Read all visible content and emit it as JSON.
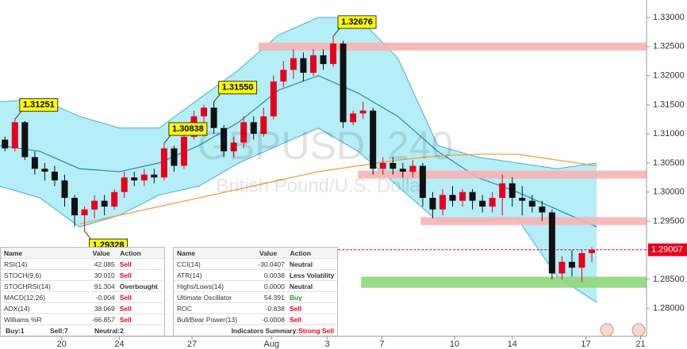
{
  "chart_data": {
    "type": "candlestick",
    "watermark_title": "GBPUSD, 240",
    "watermark_subtitle": "British Pound/U.S. Dollar",
    "xlim": [
      0,
      65
    ],
    "ylim": [
      1.2752,
      1.333
    ],
    "xticks": [
      {
        "value": 6.2,
        "label": "20"
      },
      {
        "value": 12.0,
        "label": "24"
      },
      {
        "value": 19.3,
        "label": "27"
      },
      {
        "value": 27.3,
        "label": "Aug"
      },
      {
        "value": 32.9,
        "label": "3"
      },
      {
        "value": 38.4,
        "label": "7"
      },
      {
        "value": 45.7,
        "label": "10"
      },
      {
        "value": 51.5,
        "label": "14"
      },
      {
        "value": 58.9,
        "label": "17"
      },
      {
        "value": 64.4,
        "label": "21"
      }
    ],
    "yticks": [
      {
        "value": 1.28,
        "label": "1.28000"
      },
      {
        "value": 1.285,
        "label": "1.28500"
      },
      {
        "value": 1.29,
        "label": "1.29000"
      },
      {
        "value": 1.295,
        "label": "1.29500"
      },
      {
        "value": 1.3,
        "label": "1.30000"
      },
      {
        "value": 1.305,
        "label": "1.30500"
      },
      {
        "value": 1.31,
        "label": "1.31000"
      },
      {
        "value": 1.315,
        "label": "1.31500"
      },
      {
        "value": 1.32,
        "label": "1.32000"
      },
      {
        "value": 1.325,
        "label": "1.32500"
      },
      {
        "value": 1.33,
        "label": "1.33000"
      }
    ],
    "up_color": "#e8001c",
    "down_color": "#111111",
    "candles": {
      "x": [
        0.5,
        1.5,
        2.5,
        3.5,
        4.5,
        5.5,
        6.5,
        7.5,
        8.5,
        9.5,
        10.5,
        11.5,
        12.5,
        13.5,
        14.5,
        15.5,
        16.5,
        17.5,
        18.5,
        19.5,
        20.5,
        21.5,
        22.5,
        23.5,
        24.5,
        25.5,
        26.5,
        27.5,
        28.5,
        29.5,
        30.5,
        31.5,
        32.5,
        33.5,
        34.5,
        35.5,
        36.5,
        37.5,
        38.5,
        39.5,
        40.5,
        41.5,
        42.5,
        43.5,
        44.5,
        45.5,
        46.5,
        47.5,
        48.5,
        49.5,
        50.5,
        51.5,
        52.5,
        53.5,
        54.5,
        55.5,
        56.5,
        57.5,
        58.5,
        59.5
      ],
      "open": [
        1.309,
        1.3075,
        1.312,
        1.306,
        1.304,
        1.3035,
        1.302,
        1.299,
        1.296,
        1.297,
        1.2985,
        1.2975,
        1.3,
        1.3025,
        1.302,
        1.303,
        1.3025,
        1.3075,
        1.3045,
        1.3095,
        1.313,
        1.3145,
        1.311,
        1.307,
        1.3085,
        1.312,
        1.31,
        1.313,
        1.319,
        1.321,
        1.323,
        1.3205,
        1.3235,
        1.322,
        1.3255,
        1.312,
        1.3135,
        1.314,
        1.304,
        1.305,
        1.304,
        1.3035,
        1.3045,
        1.299,
        1.297,
        1.2995,
        1.2985,
        1.3,
        1.2985,
        1.2975,
        1.299,
        1.3015,
        1.299,
        1.2985,
        1.2975,
        1.2965,
        1.286,
        1.288,
        1.287,
        1.2895
      ],
      "high": [
        1.3095,
        1.31251,
        1.3122,
        1.307,
        1.305,
        1.3045,
        1.303,
        1.2995,
        1.2975,
        1.2995,
        1.2995,
        1.3005,
        1.3035,
        1.3035,
        1.304,
        1.304,
        1.30838,
        1.308,
        1.31,
        1.314,
        1.315,
        1.3155,
        1.3115,
        1.3095,
        1.313,
        1.313,
        1.3145,
        1.32,
        1.3225,
        1.3245,
        1.324,
        1.3245,
        1.3245,
        1.32676,
        1.326,
        1.314,
        1.3155,
        1.3145,
        1.306,
        1.306,
        1.305,
        1.3055,
        1.305,
        1.3,
        1.3005,
        1.301,
        1.3005,
        1.3005,
        1.2995,
        1.3,
        1.303,
        1.3025,
        1.301,
        1.2995,
        1.2985,
        1.297,
        1.289,
        1.29,
        1.29,
        1.2905
      ],
      "low": [
        1.307,
        1.307,
        1.3055,
        1.303,
        1.302,
        1.301,
        1.2975,
        1.294,
        1.29328,
        1.2955,
        1.296,
        1.297,
        1.299,
        1.301,
        1.301,
        1.3015,
        1.302,
        1.3035,
        1.304,
        1.309,
        1.312,
        1.31,
        1.306,
        1.306,
        1.3075,
        1.309,
        1.3095,
        1.3125,
        1.318,
        1.3195,
        1.319,
        1.32,
        1.321,
        1.3215,
        1.311,
        1.3115,
        1.3125,
        1.303,
        1.303,
        1.303,
        1.3025,
        1.3025,
        1.2975,
        1.2955,
        1.296,
        1.2975,
        1.2975,
        1.297,
        1.2965,
        1.2965,
        1.296,
        1.2975,
        1.296,
        1.2965,
        1.295,
        1.285,
        1.285,
        1.2855,
        1.2845,
        1.288
      ],
      "close": [
        1.3075,
        1.312,
        1.306,
        1.304,
        1.3035,
        1.302,
        1.299,
        1.296,
        1.297,
        1.2985,
        1.2975,
        1.3,
        1.3025,
        1.302,
        1.303,
        1.3025,
        1.3075,
        1.3045,
        1.3095,
        1.313,
        1.3145,
        1.311,
        1.307,
        1.3085,
        1.312,
        1.31,
        1.313,
        1.319,
        1.321,
        1.323,
        1.3205,
        1.3235,
        1.322,
        1.3255,
        1.312,
        1.3135,
        1.314,
        1.304,
        1.305,
        1.304,
        1.3035,
        1.3045,
        1.299,
        1.297,
        1.2995,
        1.2985,
        1.3,
        1.2985,
        1.2975,
        1.299,
        1.3015,
        1.299,
        1.2985,
        1.2975,
        1.2965,
        1.286,
        1.288,
        1.287,
        1.2895,
        1.29007
      ]
    },
    "bollinger": {
      "fill_color": "#b5eef6",
      "line_color": "#4aaecb",
      "middle_color": "#2b86b3",
      "x": [
        0,
        4,
        8,
        12,
        16,
        20,
        24,
        28,
        32,
        36,
        40,
        44,
        48,
        52,
        56,
        60
      ],
      "upper": [
        1.3155,
        1.316,
        1.313,
        1.311,
        1.311,
        1.316,
        1.321,
        1.327,
        1.33,
        1.33,
        1.323,
        1.308,
        1.306,
        1.305,
        1.304,
        1.305
      ],
      "middle": [
        1.308,
        1.307,
        1.304,
        1.3035,
        1.305,
        1.308,
        1.312,
        1.3175,
        1.32,
        1.317,
        1.313,
        1.307,
        1.3025,
        1.3,
        1.297,
        1.294
      ],
      "lower": [
        1.301,
        1.299,
        1.294,
        1.296,
        1.2995,
        1.301,
        1.305,
        1.308,
        1.311,
        1.307,
        1.301,
        1.295,
        1.295,
        1.2955,
        1.2855,
        1.281
      ]
    },
    "moving_average": {
      "color": "#f0a040",
      "x": [
        0,
        4,
        8,
        12,
        16,
        20,
        24,
        28,
        32,
        36,
        40,
        44,
        48,
        52,
        56,
        60
      ],
      "values": [
        null,
        null,
        1.2945,
        1.296,
        1.2975,
        1.299,
        1.3005,
        1.302,
        1.3035,
        1.3045,
        1.3055,
        1.3062,
        1.3065,
        1.3065,
        1.3055,
        1.3045
      ]
    },
    "levels": [
      {
        "y": 1.325,
        "x_from": 26,
        "color": "#f7b3b3"
      },
      {
        "y": 1.303,
        "x_from": 36,
        "color": "#f7b3b3"
      },
      {
        "y": 1.295,
        "x_from": 42.3,
        "color": "#f7b3b3"
      },
      {
        "y": 1.2845,
        "x_from": 36.3,
        "color": "#8fd67a"
      }
    ],
    "last_price": {
      "value": 1.29007,
      "x_from": 34,
      "color": "#e8001c"
    },
    "annotations": [
      {
        "text": "1.31251",
        "candle": 1,
        "at": "high"
      },
      {
        "text": "1.29328",
        "candle": 8,
        "at": "low"
      },
      {
        "text": "1.30838",
        "candle": 16,
        "at": "high"
      },
      {
        "text": "1.31550",
        "candle": 21,
        "at": "high"
      },
      {
        "text": "1.32676",
        "candle": 33,
        "at": "high"
      }
    ]
  },
  "indicator_tables": [
    {
      "columns": [
        "Name",
        "Value",
        "Action"
      ],
      "rows": [
        {
          "name": "RSI(14)",
          "value": "42.085",
          "action": "Sell",
          "color": "#e8001c"
        },
        {
          "name": "STOCH(9,6)",
          "value": "30.010",
          "action": "Sell",
          "color": "#e8001c"
        },
        {
          "name": "STOCHRSI(14)",
          "value": "91.304",
          "action": "Overbought",
          "color": "#333333"
        },
        {
          "name": "MACD(12,26)",
          "value": "-0.004",
          "action": "Sell",
          "color": "#e8001c"
        },
        {
          "name": "ADX(14)",
          "value": "38.069",
          "action": "Sell",
          "color": "#e8001c"
        },
        {
          "name": "Williams %R",
          "value": "-66.857",
          "action": "Sell",
          "color": "#e8001c"
        }
      ],
      "summary": [
        "Buy:1",
        "Sell:7",
        "Neutral:2"
      ]
    },
    {
      "columns": [
        "Name",
        "Value",
        "Action"
      ],
      "rows": [
        {
          "name": "CCI(14)",
          "value": "-30.0407",
          "action": "Neutral",
          "color": "#333333"
        },
        {
          "name": "ATR(14)",
          "value": "0.0038",
          "action": "Less Volatility",
          "color": "#333333"
        },
        {
          "name": "Highs/Lows(14)",
          "value": "0.0000",
          "action": "Neutral",
          "color": "#333333"
        },
        {
          "name": "Ultimate Oscillator",
          "value": "54.391",
          "action": "Buy",
          "color": "#2e9e2e"
        },
        {
          "name": "ROC",
          "value": "-0.838",
          "action": "Sell",
          "color": "#e8001c"
        },
        {
          "name": "Bull/Bear Power(13)",
          "value": "-0.0008",
          "action": "Sell",
          "color": "#e8001c"
        }
      ],
      "summary_label": "Indicators Summary:",
      "summary_value": "Strong Sell",
      "summary_color": "#e8001c"
    }
  ]
}
